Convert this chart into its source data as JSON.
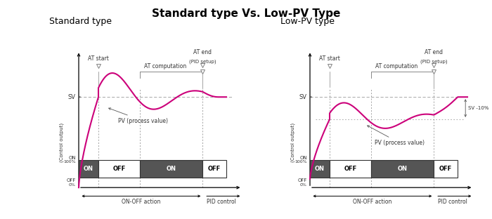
{
  "title": "Standard type Vs. Low-PV Type",
  "title_fontsize": 11,
  "subtitle_left": "Standard type",
  "subtitle_right": "Low-PV type",
  "subtitle_fontsize": 9,
  "bg_color": "#ffffff",
  "curve_color": "#cc007a",
  "sv_line_color": "#999999",
  "box_edge_color": "#333333",
  "text_color": "#333333",
  "arrow_color": "#555555",
  "gray_line": "#888888"
}
